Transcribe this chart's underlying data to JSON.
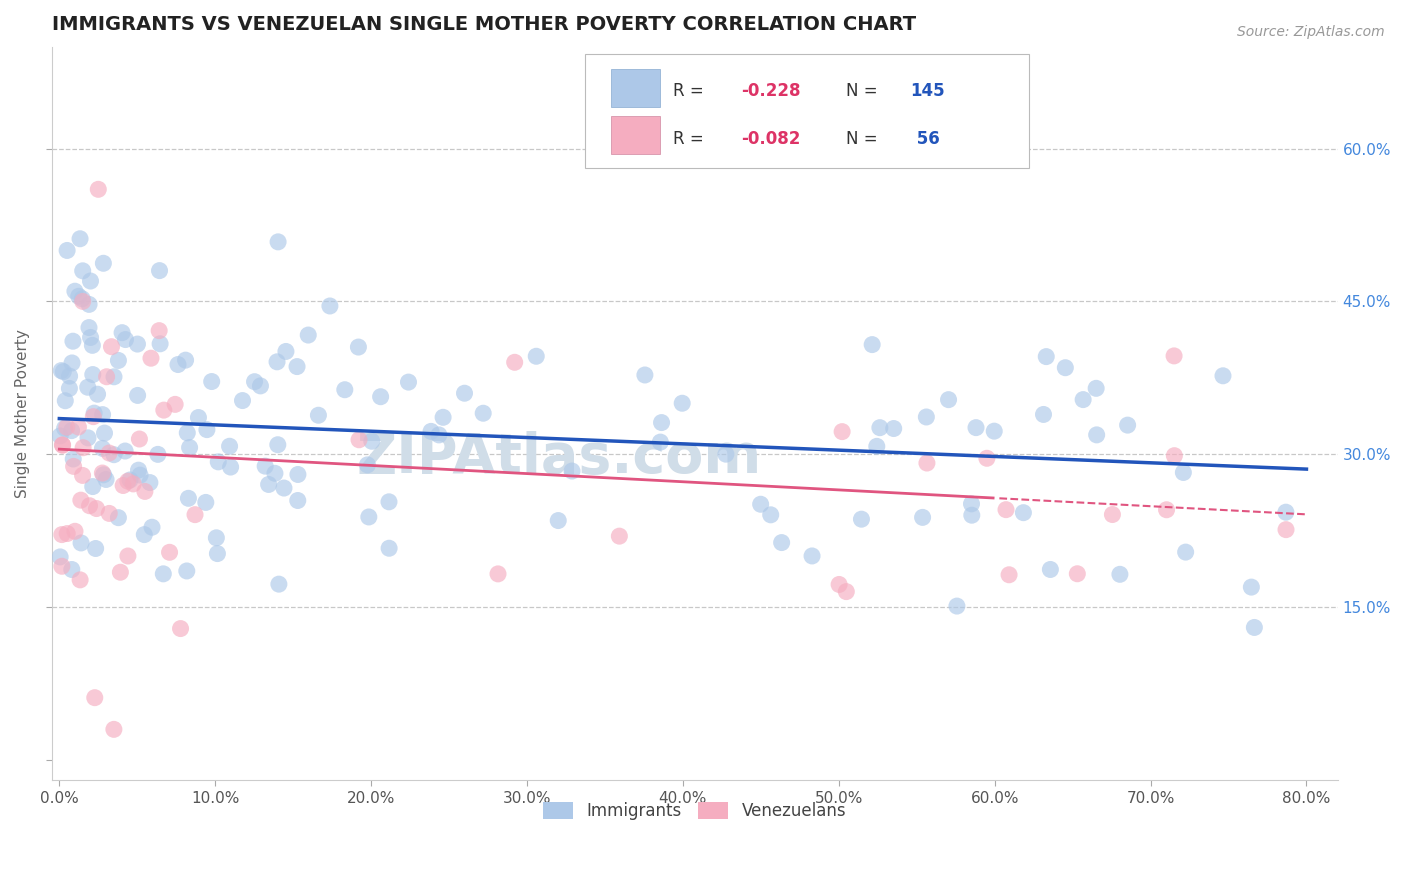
{
  "title": "IMMIGRANTS VS VENEZUELAN SINGLE MOTHER POVERTY CORRELATION CHART",
  "source": "Source: ZipAtlas.com",
  "ylabel": "Single Mother Poverty",
  "blue_color": "#adc8e8",
  "pink_color": "#f5adc0",
  "blue_line_color": "#2255bb",
  "pink_line_color": "#e05580",
  "grid_color": "#c8c8c8",
  "title_color": "#222222",
  "axis_label_color": "#666666",
  "tick_color": "#4488dd",
  "watermark": "ZIPAtlas.com",
  "watermark_color": "#d0dde8",
  "xlim": [
    -0.005,
    0.82
  ],
  "ylim": [
    -0.02,
    0.7
  ],
  "xtick_vals": [
    0.0,
    0.1,
    0.2,
    0.3,
    0.4,
    0.5,
    0.6,
    0.7,
    0.8
  ],
  "ytick_vals": [
    0.0,
    0.15,
    0.3,
    0.45,
    0.6
  ],
  "ytick_labels": [
    "",
    "15.0%",
    "30.0%",
    "45.0%",
    "60.0%"
  ],
  "xtick_labels": [
    "0.0%",
    "10.0%",
    "20.0%",
    "30.0%",
    "40.0%",
    "50.0%",
    "60.0%",
    "70.0%",
    "80.0%"
  ]
}
